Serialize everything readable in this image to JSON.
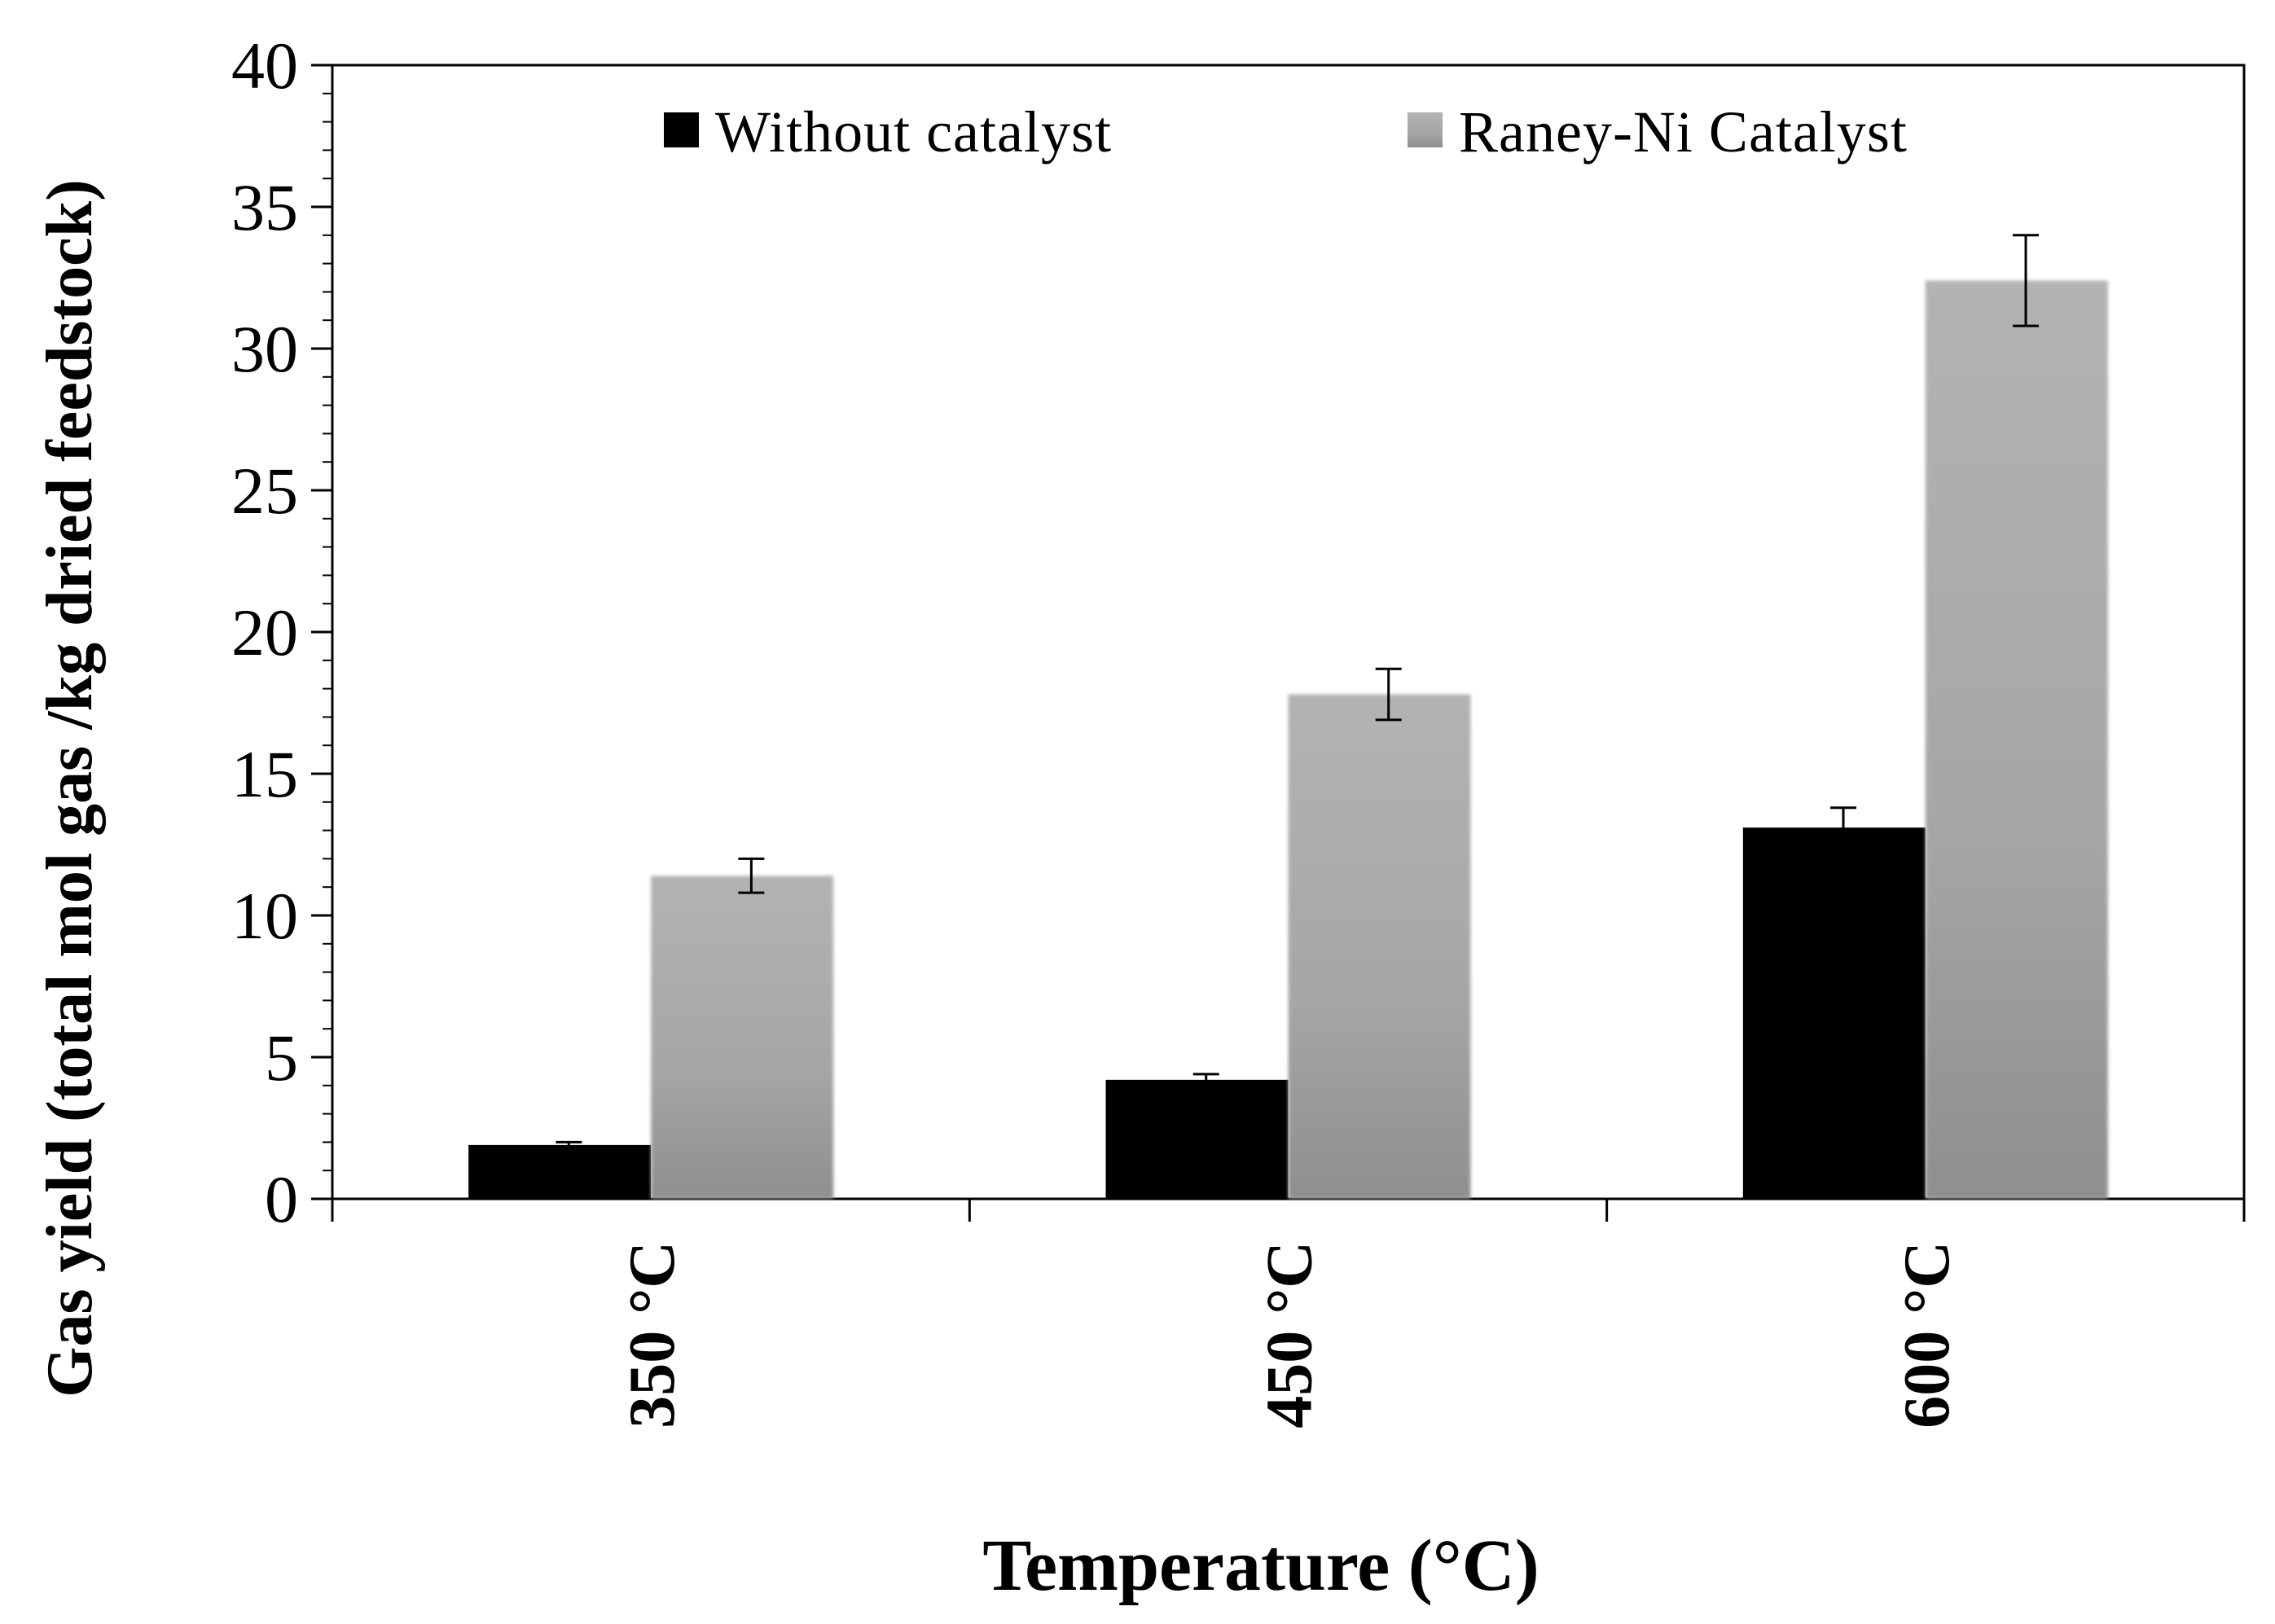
{
  "chart_data": {
    "type": "bar",
    "title": "",
    "xlabel": "Temperature (°C)",
    "ylabel": "Gas yield (total mol gas /kg dried feedstock)",
    "categories": [
      "350 °C",
      "450 °C",
      "600 °C"
    ],
    "series": [
      {
        "name": "Without catalyst",
        "color": "#000000",
        "values": [
          1.9,
          4.2,
          13.1
        ],
        "errors": [
          0.1,
          0.2,
          0.7
        ]
      },
      {
        "name": "Raney-Ni Catalyst",
        "color": "#a6a6a6",
        "values": [
          11.4,
          17.8,
          32.4
        ],
        "errors": [
          0.6,
          0.9,
          1.6
        ]
      }
    ],
    "ylim": [
      0,
      40
    ],
    "y_major_step": 5,
    "y_minor_step": 1,
    "yticks": [
      "0",
      "5",
      "10",
      "15",
      "20",
      "25",
      "30",
      "35",
      "40"
    ],
    "grid": false,
    "legend_position": "top"
  }
}
